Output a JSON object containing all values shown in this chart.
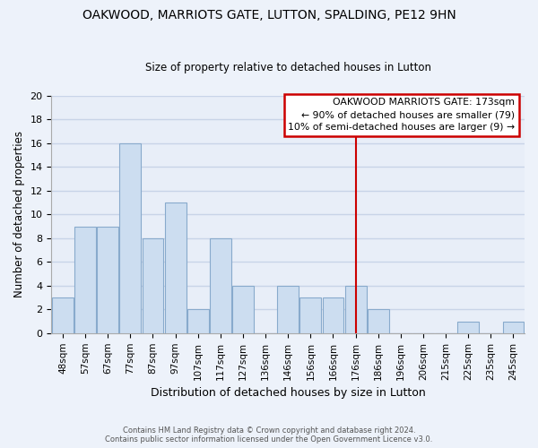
{
  "title": "OAKWOOD, MARRIOTS GATE, LUTTON, SPALDING, PE12 9HN",
  "subtitle": "Size of property relative to detached houses in Lutton",
  "xlabel": "Distribution of detached houses by size in Lutton",
  "ylabel": "Number of detached properties",
  "bar_labels": [
    "48sqm",
    "57sqm",
    "67sqm",
    "77sqm",
    "87sqm",
    "97sqm",
    "107sqm",
    "117sqm",
    "127sqm",
    "136sqm",
    "146sqm",
    "156sqm",
    "166sqm",
    "176sqm",
    "186sqm",
    "196sqm",
    "206sqm",
    "215sqm",
    "225sqm",
    "235sqm",
    "245sqm"
  ],
  "bar_heights": [
    3,
    9,
    9,
    16,
    8,
    11,
    2,
    8,
    4,
    0,
    4,
    3,
    3,
    4,
    2,
    0,
    0,
    0,
    1,
    0,
    1
  ],
  "bar_color": "#ccddf0",
  "bar_edge_color": "#88aacc",
  "vline_x": 13.0,
  "vline_color": "#cc0000",
  "ylim": [
    0,
    20
  ],
  "yticks": [
    0,
    2,
    4,
    6,
    8,
    10,
    12,
    14,
    16,
    18,
    20
  ],
  "annotation_title": "OAKWOOD MARRIOTS GATE: 173sqm",
  "annotation_line1": "← 90% of detached houses are smaller (79)",
  "annotation_line2": "10% of semi-detached houses are larger (9) →",
  "footer_line1": "Contains HM Land Registry data © Crown copyright and database right 2024.",
  "footer_line2": "Contains public sector information licensed under the Open Government Licence v3.0.",
  "bg_color": "#edf2fa",
  "grid_color": "#c8d4e8",
  "plot_bg_color": "#e8eef8"
}
